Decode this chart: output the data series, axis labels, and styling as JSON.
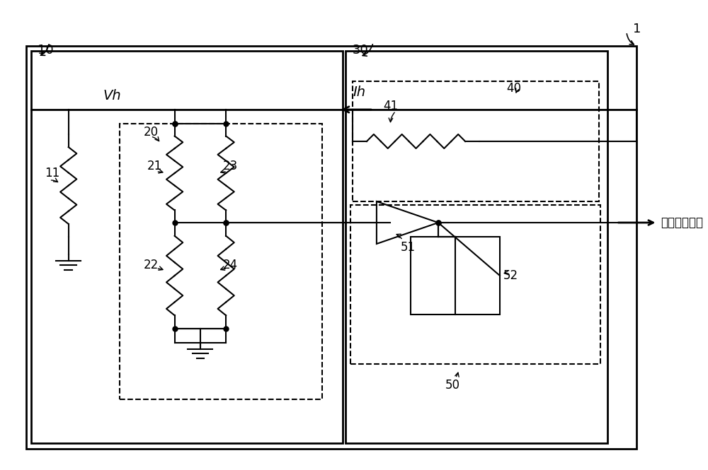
{
  "bg_color": "#ffffff",
  "line_color": "#000000",
  "fig_width": 10.0,
  "fig_height": 6.65,
  "labels": {
    "main_label": "1",
    "box10_label": "10",
    "box30_label": "30",
    "vh_label": "Vh",
    "ih_label": "Ih",
    "lbl11": "11",
    "lbl20": "20",
    "lbl21": "21",
    "lbl22": "22",
    "lbl23": "23",
    "lbl24": "24",
    "lbl40": "40",
    "lbl41": "41",
    "lbl50": "50",
    "lbl51": "51",
    "lbl52": "52",
    "output_label": "空気流量信号"
  }
}
